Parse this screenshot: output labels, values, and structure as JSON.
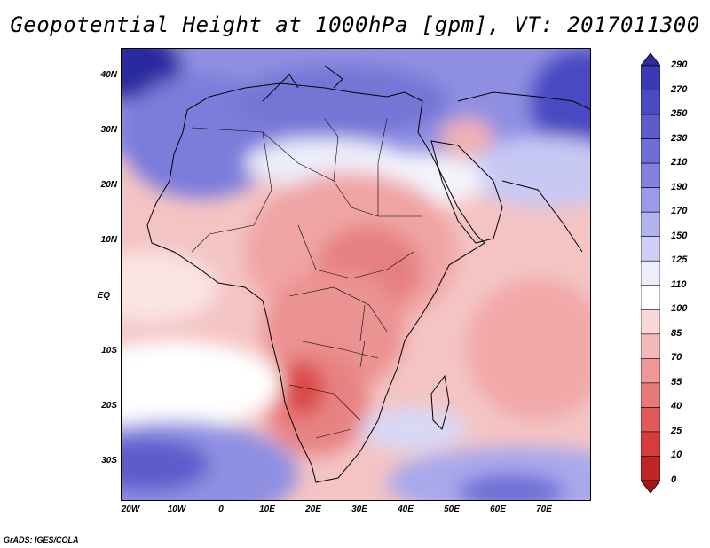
{
  "title": "Geopotential Height at 1000hPa [gpm], VT: 2017011300",
  "credit": "GrADS: IGES/COLA",
  "lat_labels": [
    "40N",
    "30N",
    "20N",
    "10N",
    "EQ",
    "10S",
    "20S",
    "30S"
  ],
  "lon_labels": [
    "20W",
    "10W",
    "0",
    "10E",
    "20E",
    "30E",
    "40E",
    "50E",
    "60E",
    "70E"
  ],
  "colorbar": {
    "labels": [
      "290",
      "270",
      "250",
      "230",
      "210",
      "190",
      "170",
      "150",
      "125",
      "110",
      "100",
      "85",
      "70",
      "55",
      "40",
      "25",
      "10",
      "0"
    ],
    "colors": [
      "#2b2aa0",
      "#3a3ab5",
      "#4a4ac2",
      "#5c5ccc",
      "#6e6ed6",
      "#8383df",
      "#9a9ae8",
      "#b2b2ef",
      "#cfcff6",
      "#ededfb",
      "#ffffff",
      "#f9d8d8",
      "#f4b8b8",
      "#ee9898",
      "#e87a7a",
      "#e05a5a",
      "#d63c3c",
      "#c02525",
      "#a61616"
    ]
  },
  "map": {
    "variable": "Geopotential Height",
    "level": "1000hPa",
    "units": "gpm",
    "valid_time": "2017011300",
    "lon_range": [
      -22,
      80
    ],
    "lat_range": [
      -37,
      45
    ]
  }
}
